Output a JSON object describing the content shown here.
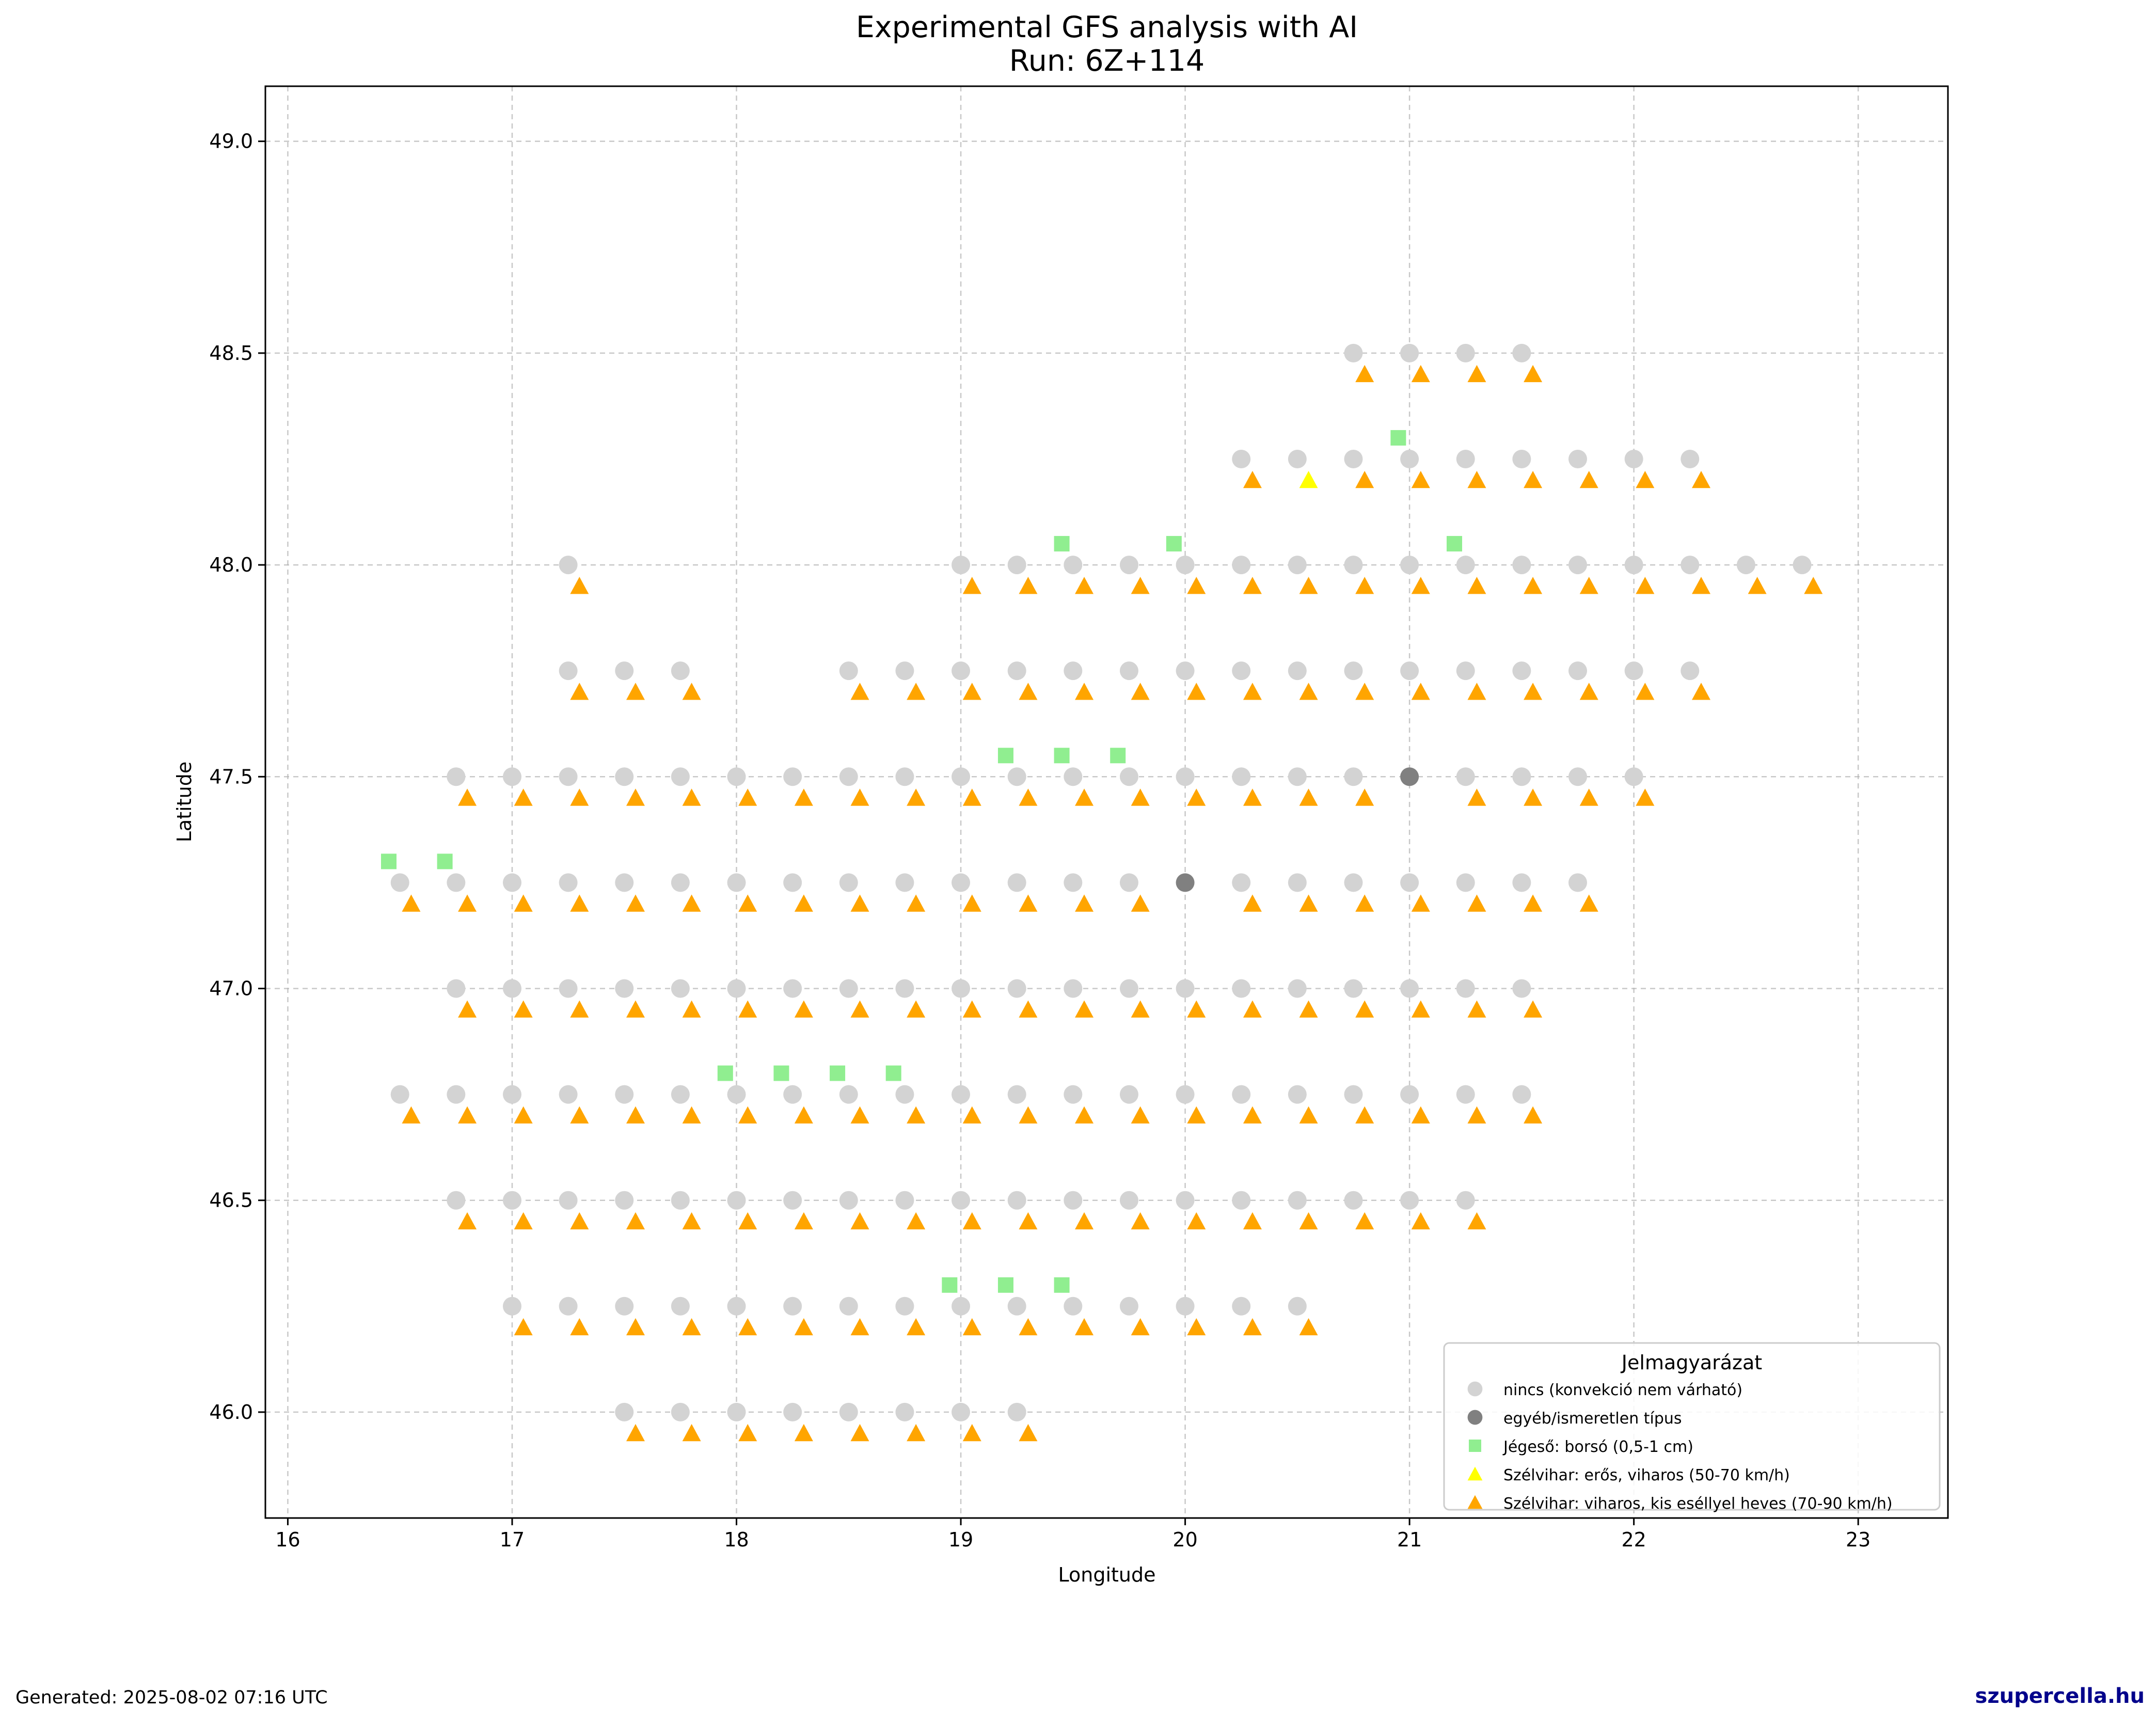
{
  "chart_data": {
    "type": "scatter",
    "title": "Experimental GFS analysis with AI",
    "subtitle": "Run: 6Z+114",
    "xlabel": "Longitude",
    "ylabel": "Latitude",
    "xlim": [
      15.9,
      23.4
    ],
    "ylim": [
      45.75,
      49.13
    ],
    "xticks": [
      "16",
      "17",
      "18",
      "19",
      "20",
      "21",
      "22",
      "23"
    ],
    "yticks": [
      "46.0",
      "46.5",
      "47.0",
      "47.5",
      "48.0",
      "48.5",
      "49.0"
    ],
    "grid": true,
    "legend_position": "bottom-right",
    "legend_title": "Jelmagyarázat",
    "triangle_offset": [
      0.05,
      -0.05
    ],
    "series": [
      {
        "name": "nincs (konvekció nem várható)",
        "marker": "circle",
        "color": "#d3d3d3",
        "rows": [
          {
            "lat": 48.5,
            "lons": [
              20.75,
              21.0,
              21.25,
              21.5
            ]
          },
          {
            "lat": 48.25,
            "lons": [
              20.25,
              20.5,
              20.75,
              21.0,
              21.25,
              21.5,
              21.75,
              22.0,
              22.25
            ]
          },
          {
            "lat": 48.0,
            "lons": [
              17.25,
              19.0,
              19.25,
              19.5,
              19.75,
              20.0,
              20.25,
              20.5,
              20.75,
              21.0,
              21.25,
              21.5,
              21.75,
              22.0,
              22.25,
              22.5,
              22.75
            ]
          },
          {
            "lat": 47.75,
            "lons": [
              17.25,
              17.5,
              17.75,
              18.5,
              18.75,
              19.0,
              19.25,
              19.5,
              19.75,
              20.0,
              20.25,
              20.5,
              20.75,
              21.0,
              21.25,
              21.5,
              21.75,
              22.0,
              22.25
            ]
          },
          {
            "lat": 47.5,
            "lons": [
              16.75,
              17.0,
              17.25,
              17.5,
              17.75,
              18.0,
              18.25,
              18.5,
              18.75,
              19.0,
              19.25,
              19.5,
              19.75,
              20.0,
              20.25,
              20.5,
              20.75,
              21.25,
              21.5,
              21.75,
              22.0
            ]
          },
          {
            "lat": 47.25,
            "lons": [
              16.5,
              16.75,
              17.0,
              17.25,
              17.5,
              17.75,
              18.0,
              18.25,
              18.5,
              18.75,
              19.0,
              19.25,
              19.5,
              19.75,
              20.25,
              20.5,
              20.75,
              21.0,
              21.25,
              21.5,
              21.75
            ]
          },
          {
            "lat": 47.0,
            "lons": [
              16.75,
              17.0,
              17.25,
              17.5,
              17.75,
              18.0,
              18.25,
              18.5,
              18.75,
              19.0,
              19.25,
              19.5,
              19.75,
              20.0,
              20.25,
              20.5,
              20.75,
              21.0,
              21.25,
              21.5
            ]
          },
          {
            "lat": 46.75,
            "lons": [
              16.5,
              16.75,
              17.0,
              17.25,
              17.5,
              17.75,
              18.0,
              18.25,
              18.5,
              18.75,
              19.0,
              19.25,
              19.5,
              19.75,
              20.0,
              20.25,
              20.5,
              20.75,
              21.0,
              21.25,
              21.5
            ]
          },
          {
            "lat": 46.5,
            "lons": [
              16.75,
              17.0,
              17.25,
              17.5,
              17.75,
              18.0,
              18.25,
              18.5,
              18.75,
              19.0,
              19.25,
              19.5,
              19.75,
              20.0,
              20.25,
              20.5,
              20.75,
              21.0,
              21.25
            ]
          },
          {
            "lat": 46.25,
            "lons": [
              17.0,
              17.25,
              17.5,
              17.75,
              18.0,
              18.25,
              18.5,
              18.75,
              19.0,
              19.25,
              19.5,
              19.75,
              20.0,
              20.25,
              20.5
            ]
          },
          {
            "lat": 46.0,
            "lons": [
              17.5,
              17.75,
              18.0,
              18.25,
              18.5,
              18.75,
              19.0,
              19.25
            ]
          }
        ]
      },
      {
        "name": "egyéb/ismeretlen típus",
        "marker": "circle",
        "color": "#808080",
        "points": [
          [
            21.0,
            47.5
          ],
          [
            20.0,
            47.25
          ]
        ]
      },
      {
        "name": "Jégeső: borsó (0,5-1 cm)",
        "marker": "square",
        "color": "#90ee90",
        "points": [
          [
            20.95,
            48.3
          ],
          [
            19.45,
            48.05
          ],
          [
            19.95,
            48.05
          ],
          [
            21.2,
            48.05
          ],
          [
            19.2,
            47.55
          ],
          [
            19.45,
            47.55
          ],
          [
            19.7,
            47.55
          ],
          [
            16.45,
            47.3
          ],
          [
            16.7,
            47.3
          ],
          [
            17.95,
            46.8
          ],
          [
            18.2,
            46.8
          ],
          [
            18.45,
            46.8
          ],
          [
            18.7,
            46.8
          ],
          [
            18.95,
            46.3
          ],
          [
            19.2,
            46.3
          ],
          [
            19.45,
            46.3
          ]
        ]
      },
      {
        "name": "Szélvihar: erős, viharos (50-70 km/h)",
        "marker": "triangle",
        "color": "#ffff00",
        "points": [
          [
            20.55,
            48.2
          ]
        ]
      },
      {
        "name": "Szélvihar: viharos, kis eséllyel heves (70-90 km/h)",
        "marker": "triangle",
        "color": "#ffa500",
        "rows": [
          {
            "lat": 48.45,
            "lons": [
              20.8,
              21.05,
              21.3,
              21.55
            ]
          },
          {
            "lat": 48.2,
            "lons": [
              20.3,
              20.8,
              21.05,
              21.3,
              21.55,
              21.8,
              22.05,
              22.3
            ]
          },
          {
            "lat": 47.95,
            "lons": [
              17.3,
              19.05,
              19.3,
              19.55,
              19.8,
              20.05,
              20.3,
              20.55,
              20.8,
              21.05,
              21.3,
              21.55,
              21.8,
              22.05,
              22.3,
              22.55,
              22.8
            ]
          },
          {
            "lat": 47.7,
            "lons": [
              17.3,
              17.55,
              17.8,
              18.55,
              18.8,
              19.05,
              19.3,
              19.55,
              19.8,
              20.05,
              20.3,
              20.55,
              20.8,
              21.05,
              21.3,
              21.55,
              21.8,
              22.05,
              22.3
            ]
          },
          {
            "lat": 47.45,
            "lons": [
              16.8,
              17.05,
              17.3,
              17.55,
              17.8,
              18.05,
              18.3,
              18.55,
              18.8,
              19.05,
              19.3,
              19.55,
              19.8,
              20.05,
              20.3,
              20.55,
              20.8,
              21.3,
              21.55,
              21.8,
              22.05
            ]
          },
          {
            "lat": 47.2,
            "lons": [
              16.55,
              16.8,
              17.05,
              17.3,
              17.55,
              17.8,
              18.05,
              18.3,
              18.55,
              18.8,
              19.05,
              19.3,
              19.55,
              19.8,
              20.3,
              20.55,
              20.8,
              21.05,
              21.3,
              21.55,
              21.8
            ]
          },
          {
            "lat": 46.95,
            "lons": [
              16.8,
              17.05,
              17.3,
              17.55,
              17.8,
              18.05,
              18.3,
              18.55,
              18.8,
              19.05,
              19.3,
              19.55,
              19.8,
              20.05,
              20.3,
              20.55,
              20.8,
              21.05,
              21.3,
              21.55
            ]
          },
          {
            "lat": 46.7,
            "lons": [
              16.55,
              16.8,
              17.05,
              17.3,
              17.55,
              17.8,
              18.05,
              18.3,
              18.55,
              18.8,
              19.05,
              19.3,
              19.55,
              19.8,
              20.05,
              20.3,
              20.55,
              20.8,
              21.05,
              21.3,
              21.55
            ]
          },
          {
            "lat": 46.45,
            "lons": [
              16.8,
              17.05,
              17.3,
              17.55,
              17.8,
              18.05,
              18.3,
              18.55,
              18.8,
              19.05,
              19.3,
              19.55,
              19.8,
              20.05,
              20.3,
              20.55,
              20.8,
              21.05,
              21.3
            ]
          },
          {
            "lat": 46.2,
            "lons": [
              17.05,
              17.3,
              17.55,
              17.8,
              18.05,
              18.3,
              18.55,
              18.8,
              19.05,
              19.3,
              19.55,
              19.8,
              20.05,
              20.3,
              20.55
            ]
          },
          {
            "lat": 45.95,
            "lons": [
              17.55,
              17.8,
              18.05,
              18.3,
              18.55,
              18.8,
              19.05,
              19.3
            ]
          }
        ]
      }
    ]
  },
  "footer": {
    "generated": "Generated: 2025-08-02 07:16 UTC",
    "brand": "szupercella.hu"
  }
}
